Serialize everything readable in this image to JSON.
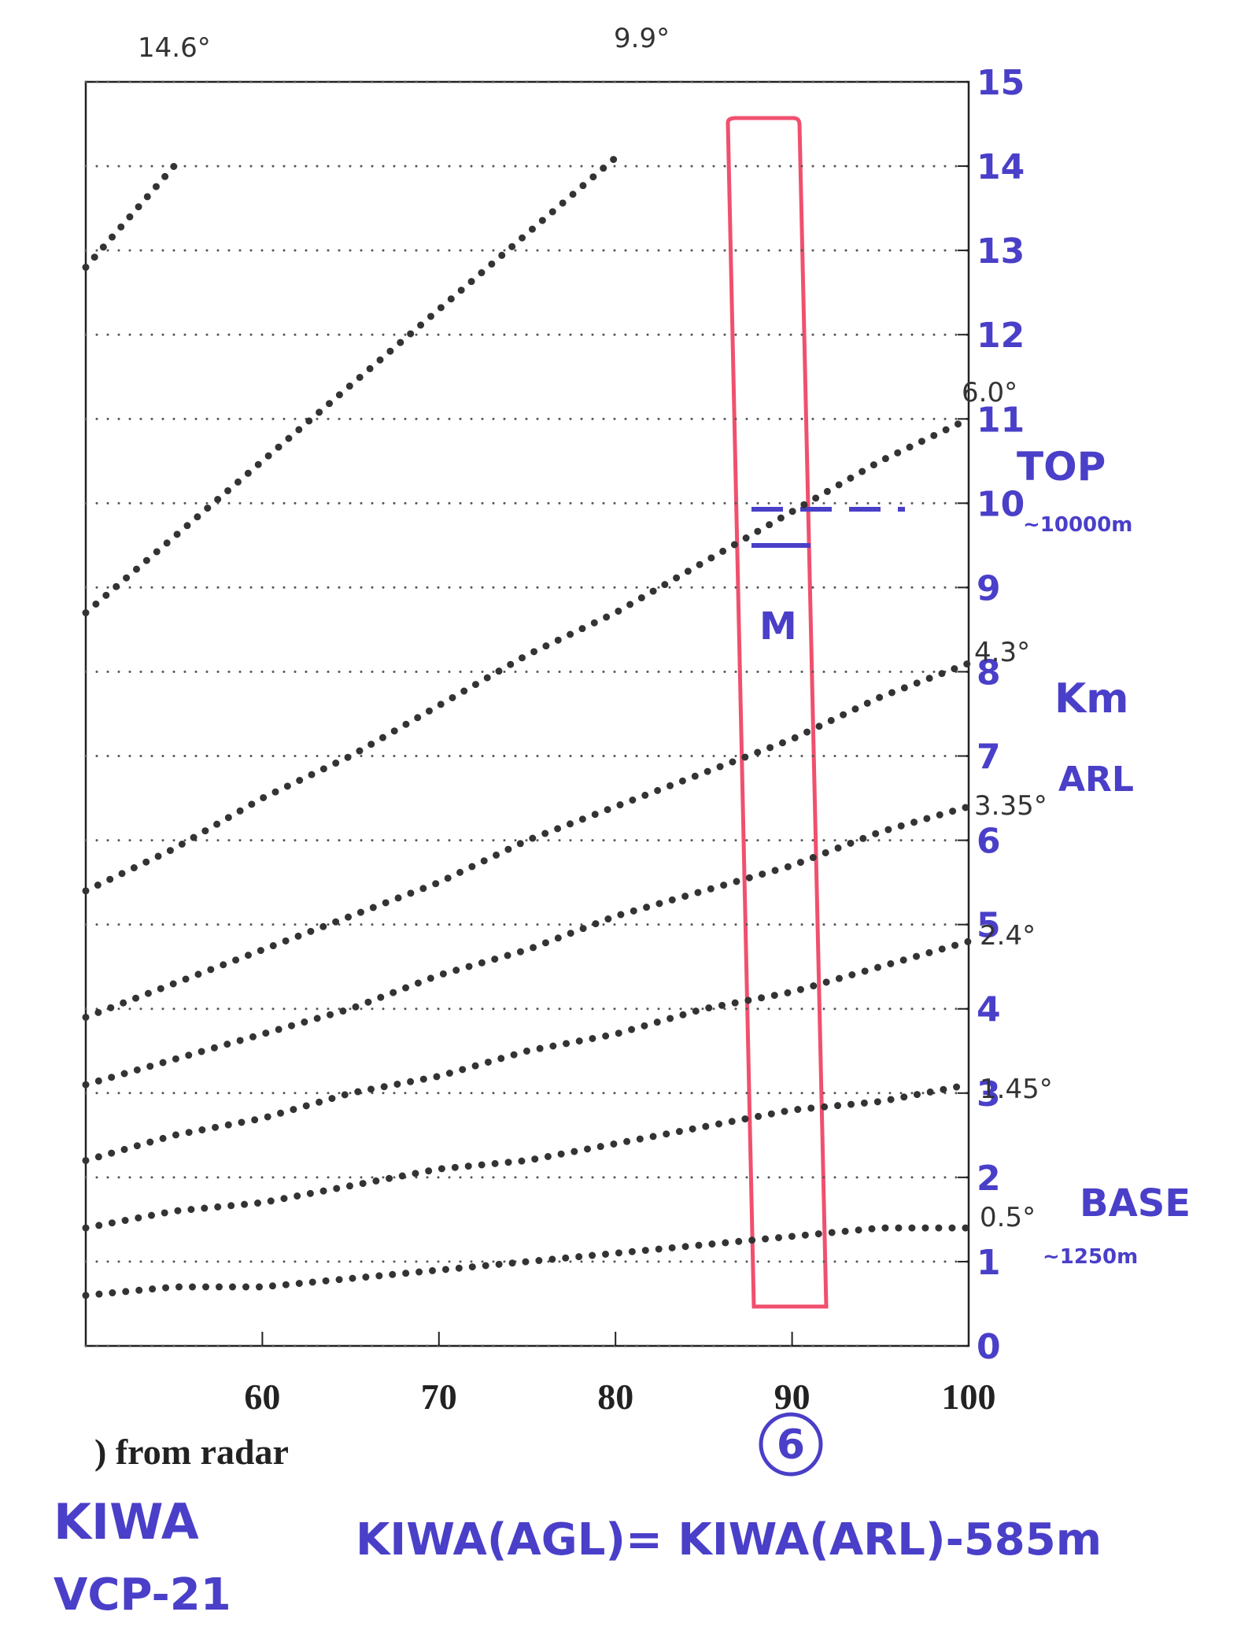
{
  "chart_data": {
    "type": "line",
    "x": [
      50,
      55,
      60,
      65,
      70,
      75,
      80,
      85,
      90,
      95,
      100
    ],
    "xlim": [
      50,
      100
    ],
    "xticks": [
      60,
      70,
      80,
      90,
      100
    ],
    "ylim": [
      0,
      15
    ],
    "yticks": [
      0,
      1,
      2,
      3,
      4,
      5,
      6,
      7,
      8,
      9,
      10,
      11,
      12,
      13,
      14,
      15
    ],
    "grid": true,
    "x_label": ") from radar",
    "series": [
      {
        "name": "0.5°",
        "color": "#333333",
        "values": [
          0.6,
          0.7,
          0.7,
          0.8,
          0.9,
          1.0,
          1.1,
          1.2,
          1.3,
          1.4,
          1.4
        ]
      },
      {
        "name": "1.45°",
        "color": "#333333",
        "values": [
          1.4,
          1.6,
          1.7,
          1.9,
          2.1,
          2.2,
          2.4,
          2.6,
          2.8,
          2.9,
          3.1
        ]
      },
      {
        "name": "2.4°",
        "color": "#333333",
        "values": [
          2.2,
          2.5,
          2.7,
          3.0,
          3.2,
          3.5,
          3.7,
          4.0,
          4.2,
          4.5,
          4.8
        ]
      },
      {
        "name": "3.35°",
        "color": "#333333",
        "values": [
          3.1,
          3.4,
          3.7,
          4.0,
          4.4,
          4.7,
          5.1,
          5.4,
          5.7,
          6.1,
          6.4
        ]
      },
      {
        "name": "4.3°",
        "color": "#333333",
        "values": [
          3.9,
          4.3,
          4.7,
          5.1,
          5.5,
          6.0,
          6.4,
          6.8,
          7.2,
          7.7,
          8.1
        ]
      },
      {
        "name": "6.0°",
        "color": "#333333",
        "values": [
          5.4,
          5.9,
          6.5,
          7.0,
          7.6,
          8.2,
          8.7,
          9.3,
          9.9,
          10.5,
          11.0
        ]
      },
      {
        "name": "9.9°",
        "color": "#333333",
        "values": [
          8.7,
          9.6,
          10.5,
          11.4,
          12.3,
          13.2,
          14.1,
          null,
          null,
          null,
          null
        ]
      },
      {
        "name": "14.6°",
        "color": "#333333",
        "values": [
          12.8,
          14.0,
          null,
          null,
          null,
          null,
          null,
          null,
          null,
          null,
          null
        ]
      }
    ],
    "annotations": {
      "top": "TOP",
      "top_value": "~10000m",
      "base": "BASE",
      "base_value": "~1250m",
      "unit": "Km",
      "reference": "ARL",
      "letter": "M",
      "panel_number": "6",
      "station": "KIWA",
      "scan_pattern": "VCP-21",
      "formula": "KIWA(AGL)= KIWA(ARL)-585m"
    }
  }
}
